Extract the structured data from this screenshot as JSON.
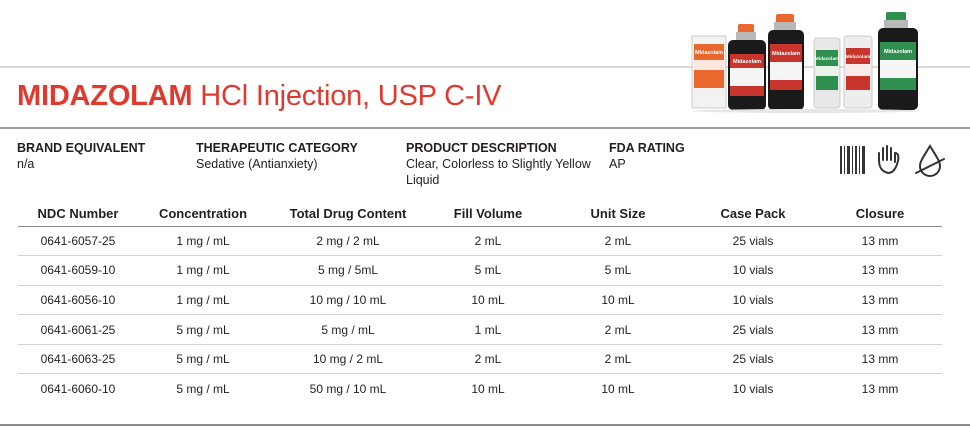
{
  "title": {
    "brand": "MIDAZOLAM",
    "rest": "HCl Injection, USP C-IV"
  },
  "product_image": {
    "vial_labels": [
      "Midazolam",
      "Midazolam",
      "Midazolam",
      "Midazolam",
      "Midazolam",
      "Midazolam"
    ],
    "colors": {
      "orange": "#e8682e",
      "green": "#2f8f4e",
      "red": "#c8352c",
      "dark": "#1a1a1a"
    }
  },
  "info": {
    "brand_equivalent": {
      "label": "BRAND EQUIVALENT",
      "value": "n/a"
    },
    "therapeutic_category": {
      "label": "THERAPEUTIC CATEGORY",
      "value": "Sedative (Antianxiety)"
    },
    "product_description": {
      "label": "PRODUCT DESCRIPTION",
      "value_line1": "Clear, Colorless to Slightly Yellow",
      "value_line2": "Liquid"
    },
    "fda_rating": {
      "label": "FDA RATING",
      "value": "AP"
    }
  },
  "icons": [
    "barcode-icon",
    "latex-free-hand-icon",
    "preservative-free-drop-icon"
  ],
  "table": {
    "headers": [
      "NDC Number",
      "Concentration",
      "Total Drug Content",
      "Fill Volume",
      "Unit Size",
      "Case Pack",
      "Closure"
    ],
    "rows": [
      [
        "0641-6057-25",
        "1 mg / mL",
        "2 mg / 2 mL",
        "2 mL",
        "2 mL",
        "25 vials",
        "13 mm"
      ],
      [
        "0641-6059-10",
        "1 mg / mL",
        "5 mg / 5mL",
        "5 mL",
        "5 mL",
        "10 vials",
        "13 mm"
      ],
      [
        "0641-6056-10",
        "1 mg / mL",
        "10 mg / 10 mL",
        "10 mL",
        "10 mL",
        "10 vials",
        "13 mm"
      ],
      [
        "0641-6061-25",
        "5 mg / mL",
        "5 mg / mL",
        "1 mL",
        "2 mL",
        "25 vials",
        "13 mm"
      ],
      [
        "0641-6063-25",
        "5 mg / mL",
        "10 mg / 2 mL",
        "2 mL",
        "2 mL",
        "25 vials",
        "13 mm"
      ],
      [
        "0641-6060-10",
        "5 mg / mL",
        "50 mg / 10 mL",
        "10 mL",
        "10 mL",
        "10 vials",
        "13 mm"
      ]
    ]
  }
}
